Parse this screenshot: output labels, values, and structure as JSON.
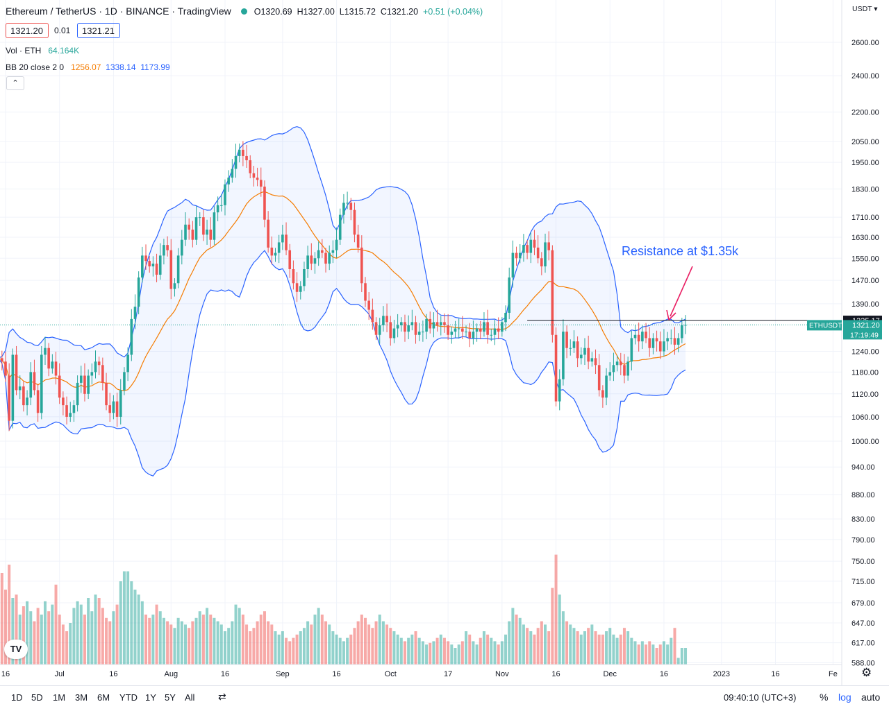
{
  "header": {
    "title": "Ethereum / TetherUS · 1D · BINANCE · TradingView",
    "open": "O1320.69",
    "high": "H1327.00",
    "low": "L1315.72",
    "close": "C1321.20",
    "change": "+0.51 (+0.04%)"
  },
  "quote": {
    "sell": "1321.20",
    "spread": "0.01",
    "buy": "1321.21"
  },
  "indicators": {
    "vol_label": "Vol · ETH",
    "vol_value": "64.164K",
    "bb_label": "BB 20 close 2 0",
    "bb_basis": "1256.07",
    "bb_upper": "1338.14",
    "bb_lower": "1173.99"
  },
  "collapse_glyph": "⌃",
  "currency": "USDT ▾",
  "annotation": "Resistance at $1.35k",
  "colors": {
    "up": "#26a69a",
    "down": "#ef5350",
    "band": "#2962ff",
    "basis": "#f57c00",
    "annotation": "#2962ff",
    "arrow": "#e91e63"
  },
  "chart_data": {
    "type": "candlestick",
    "symbol": "ETHUSDT",
    "price_axis": {
      "scale": "log",
      "ticks": [
        2600,
        2400,
        2200,
        2050,
        1950,
        1830,
        1710,
        1630,
        1550,
        1470,
        1390,
        1240,
        1180,
        1120,
        1060,
        1000,
        940,
        880,
        830,
        790,
        750,
        715,
        679,
        647,
        617,
        588
      ],
      "tick_labels": [
        "2600.00",
        "2400.00",
        "2200.00",
        "2050.00",
        "1950.00",
        "1830.00",
        "1710.00",
        "1630.00",
        "1550.00",
        "1470.00",
        "1390.00",
        "1240.00",
        "1180.00",
        "1120.00",
        "1060.00",
        "1000.00",
        "940.00",
        "880.00",
        "830.00",
        "790.00",
        "750.00",
        "715.00",
        "679.00",
        "647.00",
        "617.00",
        "588.00"
      ]
    },
    "x_axis": {
      "start": "2022-06-14",
      "ticks": [
        "16",
        "Jul",
        "16",
        "Aug",
        "16",
        "Sep",
        "16",
        "Oct",
        "17",
        "Nov",
        "16",
        "Dec",
        "16",
        "2023",
        "16",
        "Fe"
      ],
      "tick_dates": [
        "2022-06-16",
        "2022-07-01",
        "2022-07-16",
        "2022-08-01",
        "2022-08-16",
        "2022-09-01",
        "2022-09-16",
        "2022-10-01",
        "2022-10-17",
        "2022-11-01",
        "2022-11-16",
        "2022-12-01",
        "2022-12-16",
        "2023-01-01",
        "2023-01-16",
        "2023-02-01"
      ]
    },
    "resistance": {
      "value": 1335.17,
      "label": "1335.17"
    },
    "last_price": {
      "value": 1321.2,
      "label": "1321.20",
      "countdown": "17:19:49",
      "symbol_label": "ETHUSDT"
    },
    "closes": [
      1220,
      1210,
      1170,
      1050,
      1230,
      1130,
      1140,
      1090,
      1110,
      1180,
      1130,
      1070,
      1230,
      1250,
      1190,
      1210,
      1170,
      1110,
      1090,
      1060,
      1070,
      1090,
      1150,
      1170,
      1120,
      1170,
      1180,
      1210,
      1200,
      1150,
      1090,
      1070,
      1100,
      1060,
      1130,
      1180,
      1230,
      1340,
      1380,
      1480,
      1560,
      1540,
      1520,
      1530,
      1490,
      1560,
      1600,
      1580,
      1440,
      1460,
      1560,
      1620,
      1680,
      1660,
      1620,
      1710,
      1710,
      1640,
      1660,
      1620,
      1730,
      1760,
      1760,
      1850,
      1880,
      1920,
      1980,
      2010,
      1980,
      1960,
      1900,
      1880,
      1870,
      1840,
      1700,
      1590,
      1560,
      1570,
      1610,
      1640,
      1580,
      1510,
      1460,
      1430,
      1450,
      1510,
      1560,
      1530,
      1550,
      1580,
      1570,
      1530,
      1570,
      1580,
      1620,
      1720,
      1770,
      1770,
      1740,
      1640,
      1590,
      1460,
      1400,
      1370,
      1330,
      1290,
      1320,
      1350,
      1330,
      1280,
      1310,
      1320,
      1330,
      1300,
      1320,
      1330,
      1290,
      1300,
      1300,
      1340,
      1310,
      1330,
      1320,
      1330,
      1320,
      1290,
      1300,
      1310,
      1310,
      1300,
      1300,
      1280,
      1300,
      1310,
      1300,
      1330,
      1290,
      1290,
      1310,
      1300,
      1330,
      1360,
      1480,
      1570,
      1550,
      1570,
      1600,
      1570,
      1620,
      1590,
      1550,
      1520,
      1610,
      1580,
      1290,
      1100,
      1160,
      1300,
      1250,
      1250,
      1270,
      1220,
      1230,
      1250,
      1210,
      1220,
      1200,
      1130,
      1110,
      1170,
      1180,
      1200,
      1210,
      1200,
      1170,
      1210,
      1280,
      1290,
      1270,
      1300,
      1280,
      1250,
      1280,
      1270,
      1240,
      1270,
      1280,
      1280,
      1260,
      1280,
      1320,
      1321.2
    ],
    "volumes_relative": [
      1.0,
      0.55,
      0.45,
      0.6,
      0.4,
      0.42,
      0.3,
      0.35,
      0.38,
      0.32,
      0.26,
      0.34,
      0.3,
      0.38,
      0.32,
      0.36,
      0.48,
      0.3,
      0.24,
      0.2,
      0.25,
      0.34,
      0.38,
      0.36,
      0.3,
      0.4,
      0.32,
      0.42,
      0.4,
      0.34,
      0.28,
      0.26,
      0.32,
      0.36,
      0.5,
      0.56,
      0.56,
      0.5,
      0.45,
      0.42,
      0.38,
      0.3,
      0.28,
      0.3,
      0.36,
      0.32,
      0.28,
      0.26,
      0.24,
      0.22,
      0.28,
      0.26,
      0.24,
      0.22,
      0.26,
      0.28,
      0.32,
      0.3,
      0.34,
      0.3,
      0.28,
      0.26,
      0.24,
      0.2,
      0.22,
      0.26,
      0.36,
      0.34,
      0.3,
      0.24,
      0.2,
      0.22,
      0.26,
      0.3,
      0.32,
      0.26,
      0.24,
      0.2,
      0.18,
      0.2,
      0.16,
      0.14,
      0.16,
      0.18,
      0.2,
      0.22,
      0.26,
      0.24,
      0.3,
      0.34,
      0.3,
      0.26,
      0.24,
      0.2,
      0.18,
      0.16,
      0.14,
      0.16,
      0.18,
      0.22,
      0.26,
      0.3,
      0.28,
      0.24,
      0.22,
      0.26,
      0.3,
      0.26,
      0.24,
      0.22,
      0.2,
      0.18,
      0.16,
      0.14,
      0.16,
      0.18,
      0.2,
      0.16,
      0.14,
      0.12,
      0.13,
      0.14,
      0.16,
      0.18,
      0.16,
      0.14,
      0.12,
      0.1,
      0.12,
      0.14,
      0.2,
      0.18,
      0.14,
      0.12,
      0.16,
      0.2,
      0.18,
      0.16,
      0.14,
      0.12,
      0.14,
      0.18,
      0.26,
      0.34,
      0.3,
      0.28,
      0.24,
      0.22,
      0.2,
      0.18,
      0.22,
      0.26,
      0.24,
      0.2,
      0.46,
      0.66,
      0.42,
      0.32,
      0.26,
      0.24,
      0.22,
      0.2,
      0.18,
      0.2,
      0.22,
      0.24,
      0.2,
      0.18,
      0.18,
      0.2,
      0.22,
      0.18,
      0.16,
      0.18,
      0.22,
      0.2,
      0.16,
      0.14,
      0.12,
      0.14,
      0.12,
      0.14,
      0.12,
      0.1,
      0.12,
      0.14,
      0.12,
      0.16,
      0.22,
      0.04
    ]
  }
}
